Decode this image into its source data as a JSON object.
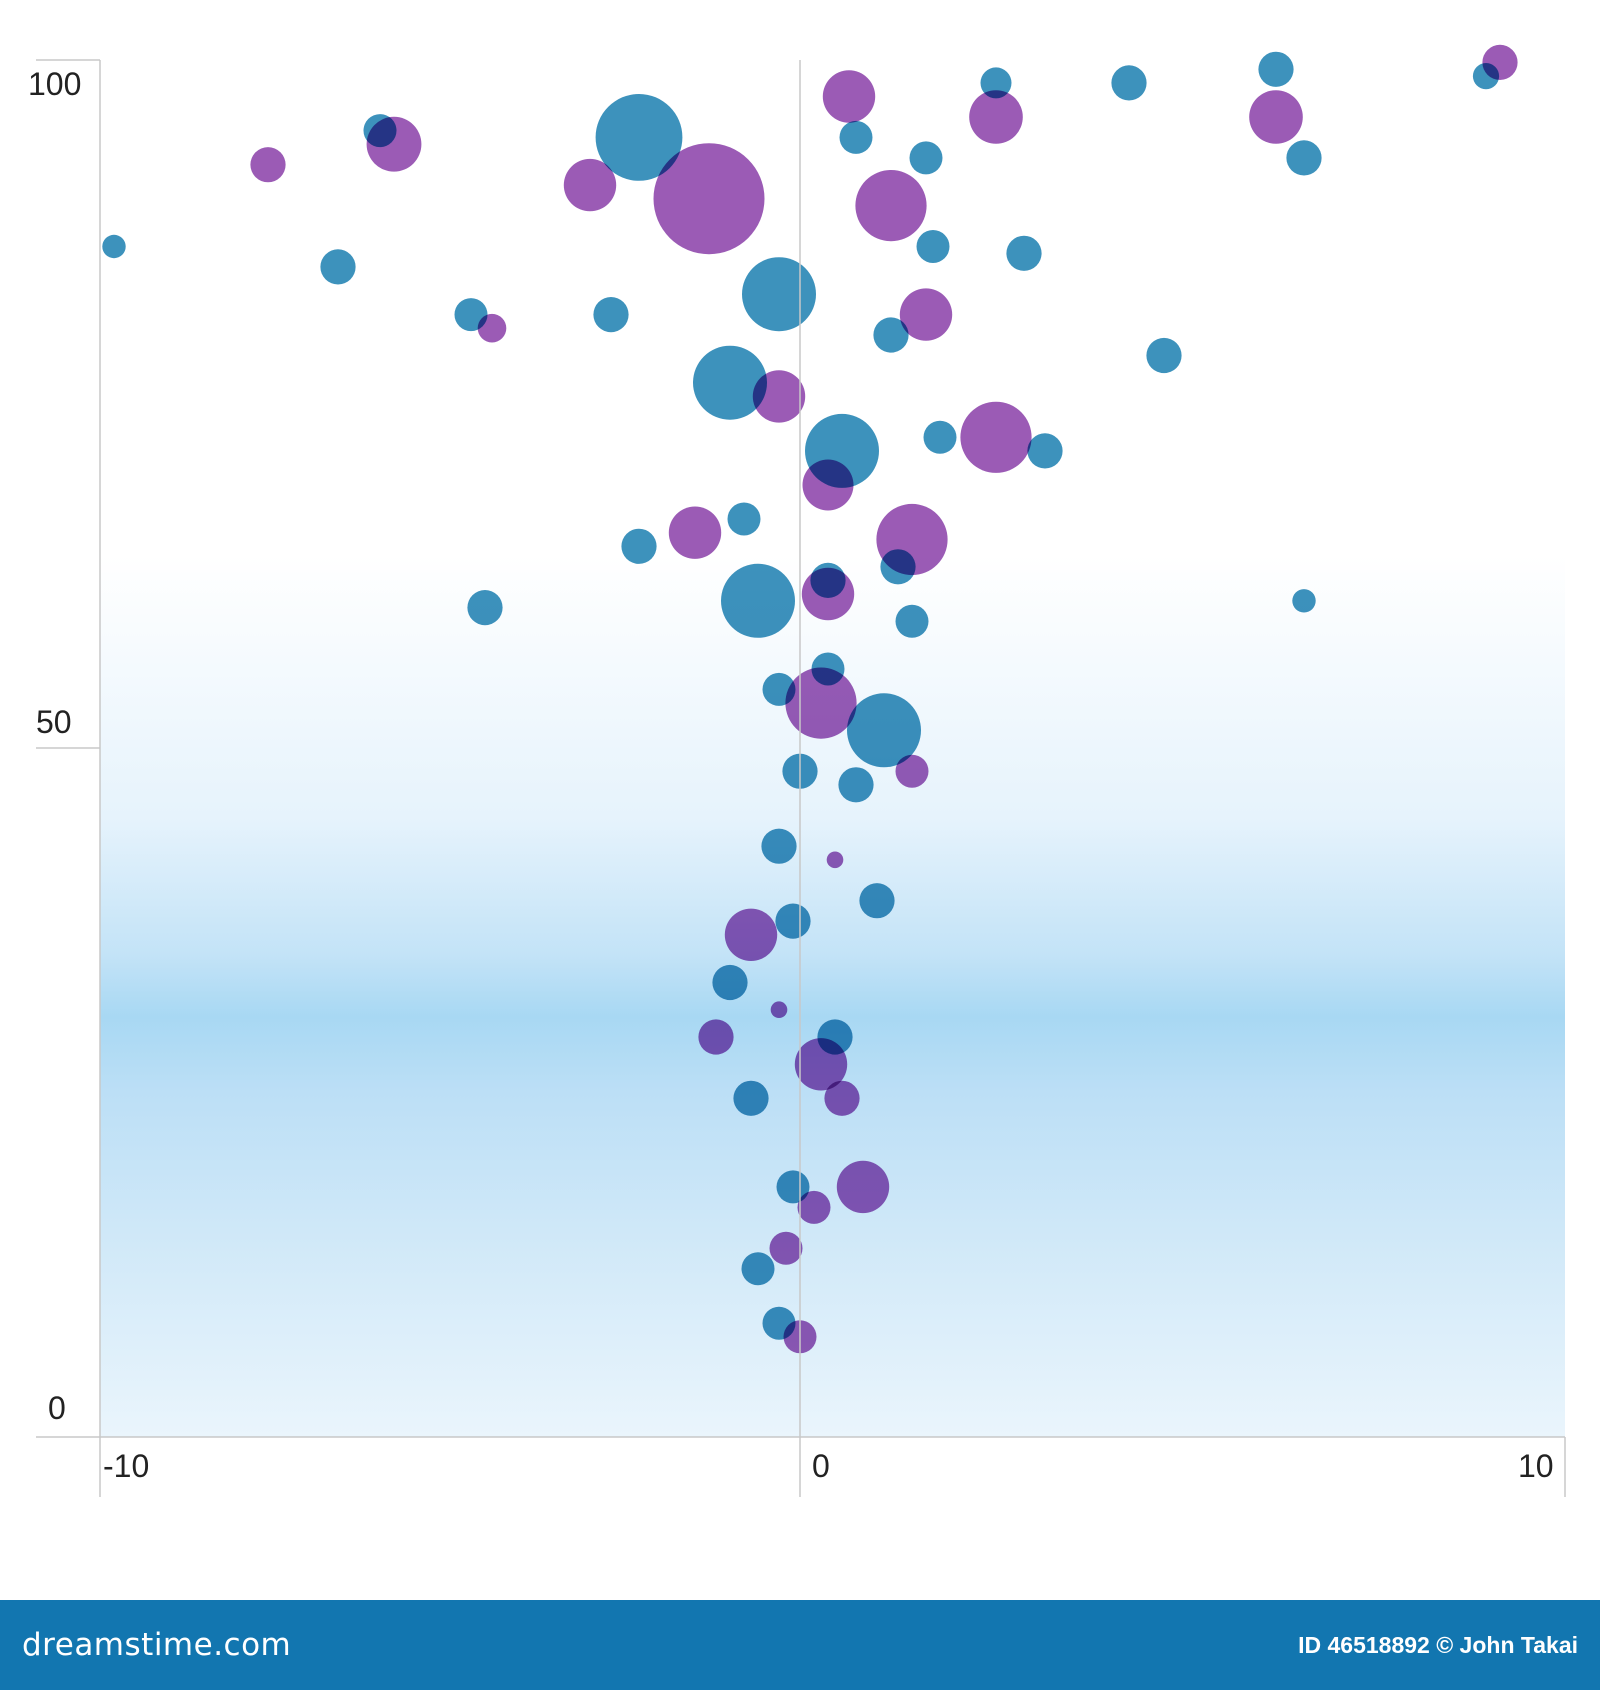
{
  "chart_data": {
    "type": "scatter",
    "title": "",
    "xlabel": "",
    "ylabel": "",
    "xlim": [
      -10,
      10
    ],
    "ylim": [
      0,
      100
    ],
    "x_ticks": [
      "-10",
      "0",
      "10"
    ],
    "y_ticks": [
      "0",
      "50",
      "100"
    ],
    "grid": false,
    "legend": "none",
    "series": [
      {
        "color": "#1b7fb0",
        "points": [
          {
            "x": -2.3,
            "y": 93.0,
            "size": 5.5
          },
          {
            "x": -6.0,
            "y": 93.5,
            "size": 0.8
          },
          {
            "x": -9.8,
            "y": 85.0,
            "size": 0.4
          },
          {
            "x": -6.6,
            "y": 83.5,
            "size": 0.9
          },
          {
            "x": -4.7,
            "y": 80.0,
            "size": 0.8
          },
          {
            "x": -2.7,
            "y": 80.0,
            "size": 0.9
          },
          {
            "x": -0.3,
            "y": 81.5,
            "size": 4.0
          },
          {
            "x": 0.8,
            "y": 93.0,
            "size": 0.8
          },
          {
            "x": 1.8,
            "y": 91.5,
            "size": 0.8
          },
          {
            "x": 1.9,
            "y": 85.0,
            "size": 0.8
          },
          {
            "x": 2.8,
            "y": 97.0,
            "size": 0.7
          },
          {
            "x": 3.2,
            "y": 84.5,
            "size": 0.9
          },
          {
            "x": 4.7,
            "y": 97.0,
            "size": 0.9
          },
          {
            "x": 6.8,
            "y": 98.0,
            "size": 0.9
          },
          {
            "x": 7.2,
            "y": 91.5,
            "size": 0.9
          },
          {
            "x": 9.8,
            "y": 97.5,
            "size": 0.5
          },
          {
            "x": 5.2,
            "y": 77.0,
            "size": 0.9
          },
          {
            "x": 1.3,
            "y": 78.5,
            "size": 0.9
          },
          {
            "x": -1.0,
            "y": 75.0,
            "size": 4.0
          },
          {
            "x": 0.6,
            "y": 70.0,
            "size": 4.0
          },
          {
            "x": 2.0,
            "y": 71.0,
            "size": 0.8
          },
          {
            "x": 3.5,
            "y": 70.0,
            "size": 0.9
          },
          {
            "x": -0.8,
            "y": 65.0,
            "size": 0.8
          },
          {
            "x": -2.3,
            "y": 63.0,
            "size": 0.9
          },
          {
            "x": -0.6,
            "y": 59.0,
            "size": 4.0
          },
          {
            "x": 0.4,
            "y": 60.5,
            "size": 0.9
          },
          {
            "x": 1.4,
            "y": 61.5,
            "size": 0.9
          },
          {
            "x": 1.6,
            "y": 57.5,
            "size": 0.8
          },
          {
            "x": -4.5,
            "y": 58.5,
            "size": 0.9
          },
          {
            "x": 7.2,
            "y": 59.0,
            "size": 0.4
          },
          {
            "x": 0.4,
            "y": 54.0,
            "size": 0.8
          },
          {
            "x": -0.3,
            "y": 52.5,
            "size": 0.8
          },
          {
            "x": 1.2,
            "y": 49.5,
            "size": 4.0
          },
          {
            "x": 0.0,
            "y": 46.5,
            "size": 0.9
          },
          {
            "x": 0.8,
            "y": 45.5,
            "size": 0.9
          },
          {
            "x": -0.3,
            "y": 41.0,
            "size": 0.9
          },
          {
            "x": -0.1,
            "y": 35.5,
            "size": 0.9
          },
          {
            "x": 1.1,
            "y": 37.0,
            "size": 0.9
          },
          {
            "x": -1.0,
            "y": 31.0,
            "size": 0.9
          },
          {
            "x": 0.5,
            "y": 27.0,
            "size": 0.9
          },
          {
            "x": -0.7,
            "y": 22.5,
            "size": 0.9
          },
          {
            "x": -0.1,
            "y": 16.0,
            "size": 0.8
          },
          {
            "x": -0.6,
            "y": 10.0,
            "size": 0.8
          },
          {
            "x": -0.3,
            "y": 6.0,
            "size": 0.8
          }
        ]
      },
      {
        "color": "#8a3ea8",
        "points": [
          {
            "x": -7.6,
            "y": 91.0,
            "size": 0.9
          },
          {
            "x": -5.8,
            "y": 92.5,
            "size": 2.2
          },
          {
            "x": -3.0,
            "y": 89.5,
            "size": 2.0
          },
          {
            "x": -1.3,
            "y": 88.5,
            "size": 9.0
          },
          {
            "x": 0.7,
            "y": 96.0,
            "size": 2.0
          },
          {
            "x": 1.3,
            "y": 88.0,
            "size": 3.7
          },
          {
            "x": 2.8,
            "y": 94.5,
            "size": 2.1
          },
          {
            "x": 6.8,
            "y": 94.5,
            "size": 2.1
          },
          {
            "x": 10.0,
            "y": 98.5,
            "size": 0.9
          },
          {
            "x": -4.4,
            "y": 79.0,
            "size": 0.6
          },
          {
            "x": 1.8,
            "y": 80.0,
            "size": 2.0
          },
          {
            "x": -0.3,
            "y": 74.0,
            "size": 2.0
          },
          {
            "x": 2.8,
            "y": 71.0,
            "size": 3.7
          },
          {
            "x": 0.4,
            "y": 67.5,
            "size": 1.9
          },
          {
            "x": -1.5,
            "y": 64.0,
            "size": 2.0
          },
          {
            "x": 1.6,
            "y": 63.5,
            "size": 3.7
          },
          {
            "x": 0.4,
            "y": 59.5,
            "size": 2.0
          },
          {
            "x": 0.3,
            "y": 51.5,
            "size": 3.7
          },
          {
            "x": 1.6,
            "y": 46.5,
            "size": 0.8
          },
          {
            "x": 0.5,
            "y": 40.0,
            "size": 0.2
          },
          {
            "x": -0.7,
            "y": 34.5,
            "size": 2.0
          },
          {
            "x": -0.3,
            "y": 29.0,
            "size": 0.2
          },
          {
            "x": 0.3,
            "y": 25.0,
            "size": 2.0
          },
          {
            "x": -1.2,
            "y": 27.0,
            "size": 0.9
          },
          {
            "x": 0.6,
            "y": 22.5,
            "size": 0.9
          },
          {
            "x": 0.9,
            "y": 16.0,
            "size": 2.0
          },
          {
            "x": 0.2,
            "y": 14.5,
            "size": 0.8
          },
          {
            "x": -0.2,
            "y": 11.5,
            "size": 0.8
          },
          {
            "x": 0.0,
            "y": 5.0,
            "size": 0.8
          }
        ]
      }
    ]
  },
  "footer": {
    "brand": "dreamstime.com",
    "credit": "ID 46518892 © John Takai"
  },
  "colors": {
    "band": "#a8d8f3",
    "axis": "#c8c8c8",
    "footer_bg": "#1276b0"
  }
}
